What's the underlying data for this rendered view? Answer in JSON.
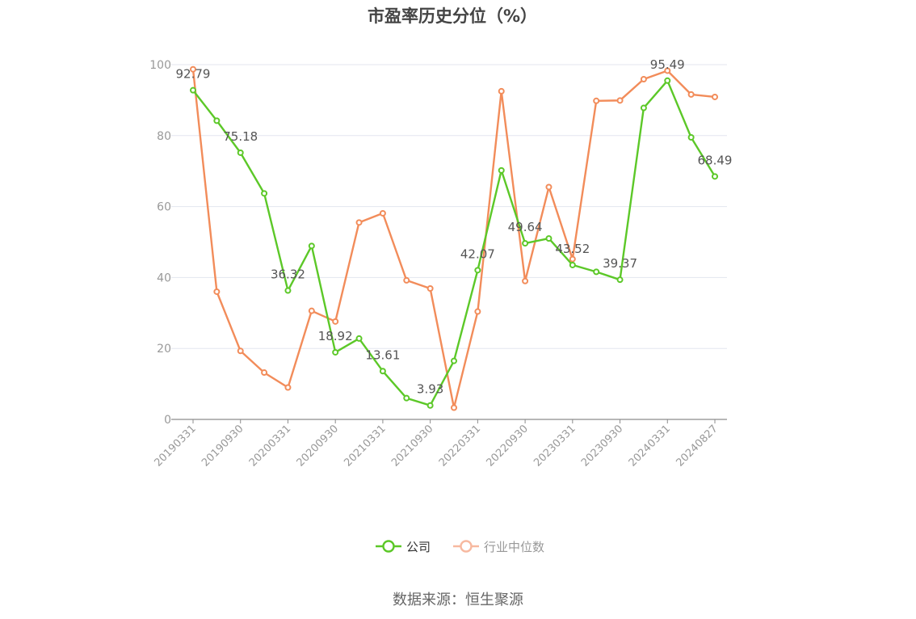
{
  "chart_data": {
    "type": "line",
    "title": "市盈率历史分位（%）",
    "ylim": [
      0,
      100
    ],
    "yticks": [
      0,
      20,
      40,
      60,
      80,
      100
    ],
    "grid": true,
    "legend_position": "bottom",
    "x": [
      "20190331",
      "20190630",
      "20190930",
      "20191231",
      "20200331",
      "20200630",
      "20200930",
      "20201231",
      "20210331",
      "20210630",
      "20210930",
      "20211231",
      "20220331",
      "20220630",
      "20220930",
      "20221231",
      "20230331",
      "20230630",
      "20230930",
      "20231231",
      "20240331",
      "20240630",
      "20240827"
    ],
    "x_tick_labels": [
      "20190331",
      "20190930",
      "20200331",
      "20200930",
      "20210331",
      "20210930",
      "20220331",
      "20220930",
      "20230331",
      "20230930",
      "20240331",
      "20240827"
    ],
    "series": [
      {
        "name": "公司",
        "color": "#5cc828",
        "values": [
          92.79,
          84.2,
          75.18,
          63.7,
          36.32,
          48.9,
          18.92,
          22.8,
          13.61,
          6.0,
          3.93,
          16.5,
          42.07,
          70.2,
          49.64,
          51.0,
          43.52,
          41.6,
          39.37,
          87.8,
          95.49,
          79.5,
          68.49
        ],
        "data_labels": [
          {
            "index": 0,
            "text": "92.79"
          },
          {
            "index": 2,
            "text": "75.18"
          },
          {
            "index": 4,
            "text": "36.32"
          },
          {
            "index": 6,
            "text": "18.92"
          },
          {
            "index": 8,
            "text": "13.61"
          },
          {
            "index": 10,
            "text": "3.93"
          },
          {
            "index": 12,
            "text": "42.07"
          },
          {
            "index": 14,
            "text": "49.64"
          },
          {
            "index": 16,
            "text": "43.52"
          },
          {
            "index": 18,
            "text": "39.37"
          },
          {
            "index": 20,
            "text": "95.49"
          },
          {
            "index": 22,
            "text": "68.49"
          }
        ]
      },
      {
        "name": "行业中位数",
        "color": "#f28c5a",
        "values": [
          98.7,
          36.0,
          19.3,
          13.2,
          9.0,
          30.6,
          27.6,
          55.5,
          58.1,
          39.2,
          36.9,
          3.3,
          30.4,
          92.5,
          39.0,
          65.5,
          45.2,
          89.8,
          89.9,
          95.9,
          98.3,
          91.6,
          90.9
        ]
      }
    ]
  },
  "legend": {
    "items": [
      {
        "label": "公司",
        "color": "#5cc828"
      },
      {
        "label": "行业中位数",
        "color": "#f7b9a0"
      }
    ]
  },
  "source": "数据来源：恒生聚源"
}
